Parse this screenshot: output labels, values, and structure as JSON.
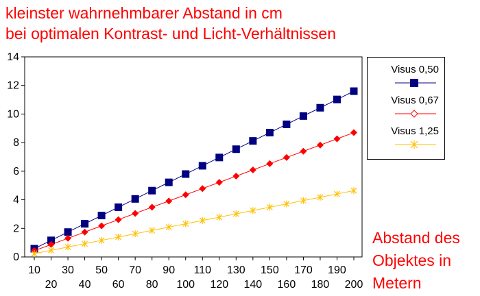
{
  "title_lines": [
    "kleinster wahrnehmbarer Abstand in cm",
    "bei optimalen Kontrast- und Licht-Verhältnissen"
  ],
  "xlabel_lines": [
    "Abstand des",
    "Objektes in",
    "Metern"
  ],
  "chart_data": {
    "type": "line",
    "title": "kleinster wahrnehmbarer Abstand in cm bei optimalen Kontrast- und Licht-Verhältnissen",
    "xlabel": "Abstand des Objektes in Metern",
    "ylabel": "",
    "x": [
      10,
      20,
      30,
      40,
      50,
      60,
      70,
      80,
      90,
      100,
      110,
      120,
      130,
      140,
      150,
      160,
      170,
      180,
      190,
      200
    ],
    "ylim": [
      0,
      14
    ],
    "yticks": [
      0,
      2,
      4,
      6,
      8,
      10,
      12,
      14
    ],
    "grid": false,
    "legend": "right",
    "series": [
      {
        "name": "Visus 0,50",
        "color": "#000080",
        "marker": "square",
        "values": [
          0.58,
          1.16,
          1.74,
          2.32,
          2.9,
          3.48,
          4.06,
          4.64,
          5.22,
          5.8,
          6.38,
          6.96,
          7.54,
          8.12,
          8.7,
          9.28,
          9.86,
          10.44,
          11.02,
          11.6
        ]
      },
      {
        "name": "Visus 0,67",
        "color": "#ff0000",
        "marker": "diamond",
        "values": [
          0.435,
          0.87,
          1.305,
          1.74,
          2.175,
          2.61,
          3.045,
          3.48,
          3.915,
          4.35,
          4.785,
          5.22,
          5.655,
          6.09,
          6.525,
          6.96,
          7.395,
          7.83,
          8.265,
          8.7
        ]
      },
      {
        "name": "Visus 1,25",
        "color": "#ffc000",
        "marker": "asterisk",
        "values": [
          0.232,
          0.464,
          0.696,
          0.928,
          1.16,
          1.392,
          1.624,
          1.856,
          2.088,
          2.32,
          2.552,
          2.784,
          3.016,
          3.248,
          3.48,
          3.712,
          3.944,
          4.176,
          4.408,
          4.64
        ]
      }
    ]
  }
}
